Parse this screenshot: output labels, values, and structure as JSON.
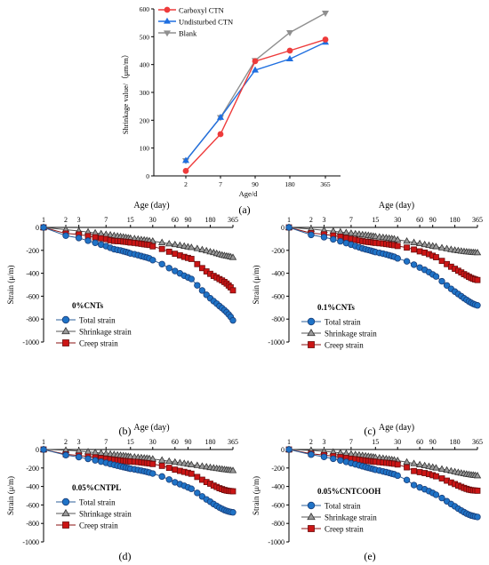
{
  "panel_labels": [
    "(a)",
    "(b)",
    "(c)",
    "(d)",
    "(e)"
  ],
  "colors": {
    "carboxyl": "#ee3b3b",
    "undisturbed": "#1f6fe0",
    "blank": "#8f8f8f",
    "total": "#1f73c7",
    "shrinkage": "#9a9a9a",
    "creep": "#cc1515"
  },
  "chart_data": [
    {
      "id": "a",
      "type": "line",
      "categories": [
        "2",
        "7",
        "90",
        "180",
        "365"
      ],
      "xlabel": "Age/d",
      "ylabel": "Shrinkage value/（μm/m）",
      "ylim": [
        0,
        600
      ],
      "yticks": [
        "0",
        "100",
        "200",
        "300",
        "400",
        "500",
        "600"
      ],
      "legend": "top-left",
      "series": [
        {
          "name": "Carboxyl CTN",
          "marker": "circle",
          "values": [
            18,
            150,
            412,
            450,
            490
          ]
        },
        {
          "name": "Undisturbed CTN",
          "marker": "triangle-up",
          "values": [
            55,
            210,
            380,
            420,
            480
          ]
        },
        {
          "name": "Blank",
          "marker": "triangle-down",
          "values": [
            55,
            210,
            415,
            515,
            585
          ]
        }
      ]
    },
    {
      "id": "b",
      "type": "line",
      "title": "Age (day)",
      "annotation": "0%CNTs",
      "ylabel": "Strain (μ/m)",
      "xscale": "log",
      "xlim": [
        1,
        365
      ],
      "xticks": [
        1,
        2,
        3,
        7,
        15,
        30,
        60,
        90,
        180,
        365
      ],
      "ylim": [
        -1000,
        0
      ],
      "yticks": [
        0,
        -200,
        -400,
        -600,
        -800,
        -1000
      ],
      "x": [
        1,
        2,
        3,
        4,
        5,
        6,
        7,
        8,
        9,
        10,
        11,
        12,
        13,
        14,
        15,
        17,
        19,
        21,
        23,
        25,
        27,
        30,
        40,
        50,
        60,
        70,
        80,
        90,
        100,
        120,
        140,
        160,
        180,
        200,
        220,
        240,
        260,
        280,
        300,
        320,
        340,
        365
      ],
      "series": [
        {
          "name": "Total strain",
          "values": [
            0,
            -72,
            -92,
            -116,
            -134,
            -150,
            -163,
            -178,
            -190,
            -196,
            -201,
            -208,
            -214,
            -220,
            -227,
            -234,
            -242,
            -250,
            -257,
            -263,
            -270,
            -285,
            -320,
            -355,
            -380,
            -401,
            -421,
            -436,
            -450,
            -505,
            -550,
            -588,
            -618,
            -643,
            -665,
            -686,
            -704,
            -722,
            -740,
            -760,
            -780,
            -811
          ]
        },
        {
          "name": "Shrinkage strain",
          "values": [
            0,
            -19,
            -31,
            -40,
            -48,
            -55,
            -61,
            -66,
            -72,
            -76,
            -80,
            -84,
            -88,
            -92,
            -95,
            -99,
            -103,
            -107,
            -110,
            -113,
            -117,
            -120,
            -132,
            -143,
            -150,
            -157,
            -164,
            -170,
            -175,
            -185,
            -195,
            -204,
            -213,
            -220,
            -228,
            -235,
            -241,
            -246,
            -250,
            -253,
            -257,
            -262
          ]
        },
        {
          "name": "Creep strain",
          "values": [
            0,
            -53,
            -61,
            -76,
            -86,
            -95,
            -102,
            -112,
            -118,
            -120,
            -121,
            -124,
            -126,
            -128,
            -132,
            -135,
            -139,
            -143,
            -147,
            -150,
            -153,
            -165,
            -188,
            -212,
            -230,
            -244,
            -257,
            -266,
            -275,
            -320,
            -355,
            -384,
            -405,
            -423,
            -437,
            -451,
            -463,
            -476,
            -490,
            -507,
            -523,
            -549
          ]
        }
      ]
    },
    {
      "id": "c",
      "type": "line",
      "title": "Age (day)",
      "annotation": "0.1%CNTs",
      "ylabel": "Strain (μ/m)",
      "xscale": "log",
      "xlim": [
        1,
        365
      ],
      "xticks": [
        1,
        2,
        3,
        7,
        15,
        30,
        60,
        90,
        180,
        365
      ],
      "ylim": [
        -1000,
        0
      ],
      "yticks": [
        0,
        -200,
        -400,
        -600,
        -800,
        -1000
      ],
      "x": [
        1,
        2,
        3,
        4,
        5,
        6,
        7,
        8,
        9,
        10,
        11,
        12,
        13,
        14,
        15,
        17,
        19,
        21,
        23,
        25,
        27,
        30,
        40,
        50,
        60,
        70,
        80,
        90,
        100,
        120,
        140,
        160,
        180,
        200,
        220,
        240,
        260,
        280,
        300,
        320,
        340,
        365
      ],
      "series": [
        {
          "name": "Total strain",
          "values": [
            0,
            -65,
            -85,
            -104,
            -121,
            -137,
            -150,
            -163,
            -174,
            -184,
            -191,
            -197,
            -203,
            -209,
            -215,
            -222,
            -229,
            -236,
            -243,
            -250,
            -256,
            -270,
            -296,
            -325,
            -350,
            -370,
            -390,
            -410,
            -428,
            -470,
            -506,
            -536,
            -560,
            -581,
            -600,
            -618,
            -632,
            -646,
            -658,
            -667,
            -674,
            -680
          ]
        },
        {
          "name": "Shrinkage strain",
          "values": [
            0,
            -15,
            -25,
            -33,
            -40,
            -46,
            -51,
            -56,
            -60,
            -64,
            -67,
            -70,
            -74,
            -77,
            -80,
            -84,
            -88,
            -91,
            -95,
            -98,
            -101,
            -108,
            -120,
            -132,
            -141,
            -150,
            -157,
            -163,
            -168,
            -178,
            -186,
            -193,
            -199,
            -203,
            -207,
            -210,
            -213,
            -215,
            -217,
            -219,
            -220,
            -221
          ]
        },
        {
          "name": "Creep strain",
          "values": [
            0,
            -50,
            -60,
            -71,
            -81,
            -91,
            -99,
            -107,
            -114,
            -120,
            -124,
            -127,
            -129,
            -132,
            -135,
            -138,
            -141,
            -145,
            -148,
            -152,
            -155,
            -162,
            -176,
            -193,
            -209,
            -220,
            -233,
            -247,
            -260,
            -292,
            -320,
            -343,
            -361,
            -378,
            -393,
            -408,
            -419,
            -431,
            -441,
            -448,
            -454,
            -459
          ]
        }
      ]
    },
    {
      "id": "d",
      "type": "line",
      "title": "Age (day)",
      "annotation": "0.05%CNTPL",
      "ylabel": "Strain (μ/m)",
      "xscale": "log",
      "xlim": [
        1,
        365
      ],
      "xticks": [
        1,
        2,
        3,
        7,
        15,
        30,
        60,
        90,
        180,
        365
      ],
      "ylim": [
        -1000,
        0
      ],
      "yticks": [
        0,
        -200,
        -400,
        -600,
        -800,
        -1000
      ],
      "x": [
        1,
        2,
        3,
        4,
        5,
        6,
        7,
        8,
        9,
        10,
        11,
        12,
        13,
        14,
        15,
        17,
        19,
        21,
        23,
        25,
        27,
        30,
        40,
        50,
        60,
        70,
        80,
        90,
        100,
        120,
        140,
        160,
        180,
        200,
        220,
        240,
        260,
        280,
        300,
        320,
        340,
        365
      ],
      "series": [
        {
          "name": "Total strain",
          "values": [
            0,
            -60,
            -82,
            -101,
            -117,
            -131,
            -144,
            -156,
            -166,
            -175,
            -183,
            -190,
            -196,
            -202,
            -208,
            -215,
            -222,
            -229,
            -236,
            -242,
            -249,
            -260,
            -292,
            -325,
            -355,
            -375,
            -392,
            -410,
            -425,
            -470,
            -508,
            -540,
            -565,
            -590,
            -610,
            -628,
            -642,
            -655,
            -664,
            -671,
            -676,
            -680
          ]
        },
        {
          "name": "Shrinkage strain",
          "values": [
            0,
            -8,
            -17,
            -25,
            -32,
            -39,
            -45,
            -50,
            -55,
            -60,
            -64,
            -67,
            -71,
            -75,
            -78,
            -82,
            -86,
            -89,
            -92,
            -95,
            -98,
            -103,
            -115,
            -127,
            -137,
            -144,
            -151,
            -158,
            -164,
            -173,
            -181,
            -188,
            -195,
            -200,
            -205,
            -209,
            -213,
            -217,
            -220,
            -223,
            -226,
            -228
          ]
        },
        {
          "name": "Creep strain",
          "values": [
            0,
            -52,
            -65,
            -76,
            -85,
            -93,
            -100,
            -106,
            -111,
            -115,
            -119,
            -123,
            -126,
            -128,
            -130,
            -133,
            -136,
            -140,
            -144,
            -147,
            -151,
            -157,
            -177,
            -198,
            -218,
            -231,
            -242,
            -252,
            -262,
            -297,
            -327,
            -352,
            -370,
            -390,
            -405,
            -419,
            -429,
            -438,
            -444,
            -448,
            -450,
            -452
          ]
        }
      ]
    },
    {
      "id": "e",
      "type": "line",
      "title": "Age (day)",
      "annotation": "0.05%CNTCOOH",
      "ylabel": "Strain (μ/m)",
      "xscale": "log",
      "xlim": [
        1,
        365
      ],
      "xticks": [
        1,
        2,
        3,
        7,
        15,
        30,
        60,
        90,
        180,
        365
      ],
      "ylim": [
        -1000,
        0
      ],
      "yticks": [
        0,
        -200,
        -400,
        -600,
        -800,
        -1000
      ],
      "x": [
        1,
        2,
        3,
        4,
        5,
        6,
        7,
        8,
        9,
        10,
        11,
        12,
        13,
        14,
        15,
        17,
        19,
        21,
        23,
        25,
        27,
        30,
        40,
        50,
        60,
        70,
        80,
        90,
        100,
        120,
        140,
        160,
        180,
        200,
        220,
        240,
        260,
        280,
        300,
        320,
        340,
        365
      ],
      "series": [
        {
          "name": "Total strain",
          "values": [
            0,
            -55,
            -80,
            -100,
            -118,
            -134,
            -148,
            -160,
            -171,
            -181,
            -190,
            -198,
            -205,
            -212,
            -219,
            -228,
            -237,
            -245,
            -253,
            -261,
            -268,
            -282,
            -330,
            -385,
            -410,
            -430,
            -450,
            -470,
            -490,
            -525,
            -560,
            -590,
            -615,
            -640,
            -660,
            -678,
            -693,
            -705,
            -714,
            -720,
            -725,
            -730
          ]
        },
        {
          "name": "Shrinkage strain",
          "values": [
            0,
            -10,
            -20,
            -28,
            -36,
            -43,
            -49,
            -55,
            -60,
            -65,
            -70,
            -74,
            -78,
            -82,
            -86,
            -91,
            -96,
            -101,
            -106,
            -110,
            -114,
            -120,
            -137,
            -152,
            -165,
            -175,
            -184,
            -192,
            -200,
            -212,
            -223,
            -233,
            -241,
            -249,
            -256,
            -262,
            -267,
            -271,
            -275,
            -278,
            -281,
            -284
          ]
        },
        {
          "name": "Creep strain",
          "values": [
            0,
            -45,
            -60,
            -72,
            -82,
            -91,
            -99,
            -105,
            -111,
            -116,
            -120,
            -124,
            -127,
            -130,
            -133,
            -137,
            -141,
            -144,
            -147,
            -151,
            -154,
            -162,
            -193,
            -233,
            -245,
            -255,
            -266,
            -278,
            -290,
            -313,
            -337,
            -357,
            -374,
            -391,
            -404,
            -416,
            -426,
            -434,
            -439,
            -442,
            -444,
            -446
          ]
        }
      ]
    }
  ]
}
